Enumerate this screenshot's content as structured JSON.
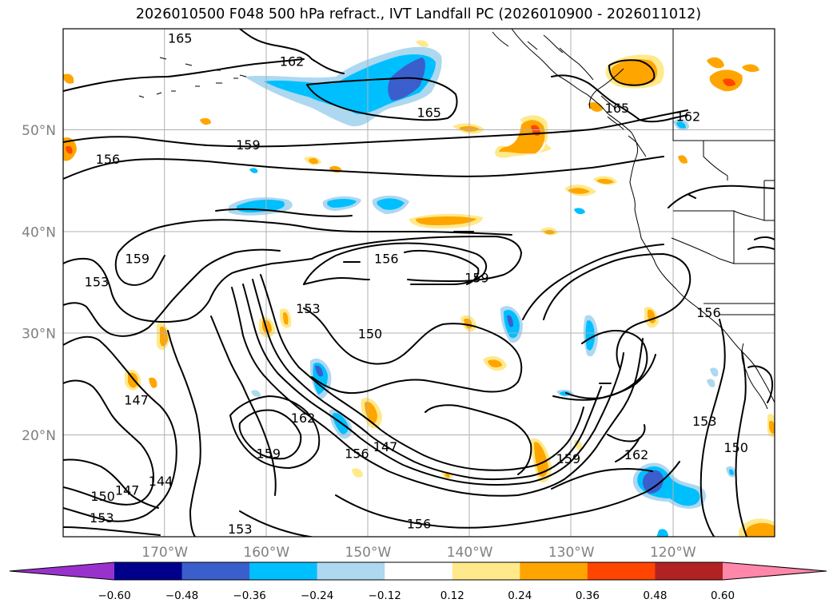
{
  "title": "2026010500 F048 500 hPa refract., IVT Landfall PC (2026010900 - 2026011012)",
  "map": {
    "lon_range": [
      -180,
      -110
    ],
    "lat_range": [
      10,
      60
    ],
    "lat_ticks": [
      {
        "value": 50,
        "label": "50°N"
      },
      {
        "value": 40,
        "label": "40°N"
      },
      {
        "value": 30,
        "label": "30°N"
      },
      {
        "value": 20,
        "label": "20°N"
      }
    ],
    "lon_ticks": [
      {
        "value": -170,
        "label": "170°W"
      },
      {
        "value": -160,
        "label": "160°W"
      },
      {
        "value": -150,
        "label": "150°W"
      },
      {
        "value": -140,
        "label": "140°W"
      },
      {
        "value": -130,
        "label": "130°W"
      },
      {
        "value": -120,
        "label": "120°W"
      }
    ],
    "grid": true
  },
  "colorbar": {
    "levels": [
      "−0.60",
      "−0.48",
      "−0.36",
      "−0.24",
      "−0.12",
      "0.12",
      "0.24",
      "0.36",
      "0.48",
      "0.60"
    ],
    "colors": [
      "#9932cc",
      "#00008b",
      "#3a5fcd",
      "#00bfff",
      "#add8f0",
      "#ffffff",
      "#ffe98a",
      "#ffa500",
      "#ff4500",
      "#b22222",
      "#ff88aa"
    ],
    "extend": "both"
  },
  "contour_labels": [
    {
      "text": "165",
      "lon": -168.5,
      "lat": 59.1
    },
    {
      "text": "162",
      "lon": -157.5,
      "lat": 56.8
    },
    {
      "text": "165",
      "lon": -144,
      "lat": 51.8
    },
    {
      "text": "165",
      "lon": -125.5,
      "lat": 52.2
    },
    {
      "text": "162",
      "lon": -118.5,
      "lat": 51.4
    },
    {
      "text": "159",
      "lon": -161.8,
      "lat": 48.6
    },
    {
      "text": "156",
      "lon": -175.6,
      "lat": 47.2
    },
    {
      "text": "159",
      "lon": -172.7,
      "lat": 37.4
    },
    {
      "text": "156",
      "lon": -148.2,
      "lat": 37.4
    },
    {
      "text": "159",
      "lon": -139.3,
      "lat": 35.5
    },
    {
      "text": "153",
      "lon": -176.7,
      "lat": 35.1
    },
    {
      "text": "153",
      "lon": -155.9,
      "lat": 32.5
    },
    {
      "text": "150",
      "lon": -149.8,
      "lat": 30.0
    },
    {
      "text": "156",
      "lon": -116.5,
      "lat": 32.1
    },
    {
      "text": "147",
      "lon": -172.8,
      "lat": 23.5
    },
    {
      "text": "162",
      "lon": -156.4,
      "lat": 21.7
    },
    {
      "text": "159",
      "lon": -159.8,
      "lat": 18.2
    },
    {
      "text": "156",
      "lon": -151.1,
      "lat": 18.2
    },
    {
      "text": "147",
      "lon": -148.3,
      "lat": 18.9
    },
    {
      "text": "159",
      "lon": -130.3,
      "lat": 17.7
    },
    {
      "text": "162",
      "lon": -123.6,
      "lat": 18.1
    },
    {
      "text": "153",
      "lon": -116.9,
      "lat": 21.4
    },
    {
      "text": "150",
      "lon": -113.8,
      "lat": 18.8
    },
    {
      "text": "144",
      "lon": -170.4,
      "lat": 15.5
    },
    {
      "text": "147",
      "lon": -173.7,
      "lat": 14.6
    },
    {
      "text": "150",
      "lon": -176.1,
      "lat": 14.0
    },
    {
      "text": "153",
      "lon": -176.2,
      "lat": 11.9
    },
    {
      "text": "156",
      "lon": -145.0,
      "lat": 11.3
    },
    {
      "text": "153",
      "lon": -162.6,
      "lat": 10.8
    }
  ]
}
